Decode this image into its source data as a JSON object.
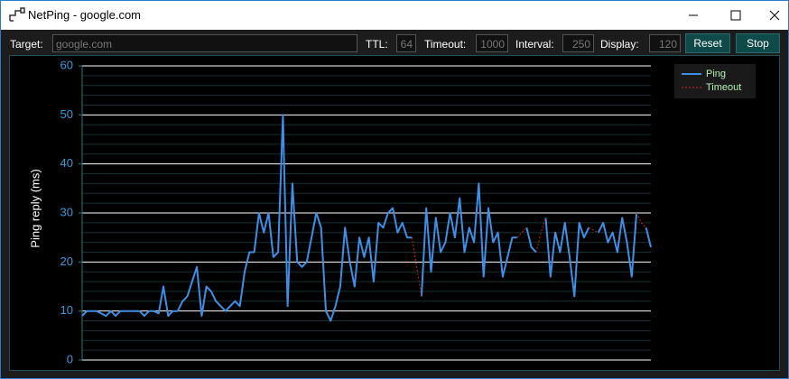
{
  "window": {
    "title": "NetPing - google.com"
  },
  "toolbar": {
    "target_label": "Target:",
    "target_value": "google.com",
    "ttl_label": "TTL:",
    "ttl_value": "64",
    "timeout_label": "Timeout:",
    "timeout_value": "1000",
    "interval_label": "Interval:",
    "interval_value": "250",
    "display_label": "Display:",
    "display_value": "120",
    "reset": "Reset",
    "stop": "Stop"
  },
  "chart_data": {
    "type": "line",
    "y_label": "Ping reply (ms)",
    "ylim": [
      0,
      60
    ],
    "yticks": [
      0,
      10,
      20,
      30,
      40,
      50,
      60
    ],
    "grid": true,
    "legend": "upper right",
    "series": [
      {
        "name": "Ping",
        "color": "#3f8fe6",
        "style": "solid",
        "values": [
          9,
          10,
          10,
          10,
          9.5,
          9,
          10,
          9,
          10,
          10,
          10,
          10,
          10,
          9,
          10,
          10,
          9.5,
          15,
          9,
          10,
          10,
          12,
          13,
          16,
          19,
          9,
          15,
          14,
          12,
          11,
          10,
          11,
          12,
          11,
          18,
          22,
          22,
          30,
          26,
          30,
          21,
          22,
          50,
          11,
          36,
          20,
          19,
          20,
          25,
          30,
          27,
          10,
          8,
          11,
          15,
          27,
          20,
          15,
          25,
          21,
          25,
          16,
          28,
          27,
          30,
          31,
          26,
          28,
          25,
          25,
          null,
          13,
          31,
          18,
          29,
          22,
          24,
          30,
          25,
          33,
          22,
          27,
          24,
          36,
          17,
          31,
          24,
          26,
          17,
          21,
          25,
          25,
          null,
          27,
          23,
          22,
          null,
          29,
          17,
          26,
          22,
          28,
          21,
          13,
          28,
          25,
          27,
          null,
          26,
          28,
          24,
          26,
          22,
          29,
          24,
          17,
          30,
          null,
          27,
          23
        ]
      },
      {
        "name": "Timeout",
        "color": "#d42020",
        "style": "dashed",
        "values": [
          null,
          null,
          null,
          null,
          null,
          null,
          null,
          null,
          null,
          null,
          null,
          null,
          null,
          null,
          null,
          null,
          null,
          null,
          null,
          null,
          null,
          null,
          null,
          null,
          null,
          null,
          null,
          null,
          null,
          null,
          null,
          null,
          null,
          null,
          null,
          null,
          null,
          null,
          null,
          null,
          null,
          null,
          null,
          null,
          null,
          null,
          null,
          null,
          null,
          null,
          null,
          null,
          null,
          null,
          null,
          null,
          null,
          null,
          null,
          null,
          null,
          null,
          null,
          null,
          null,
          null,
          null,
          null,
          null,
          25,
          19,
          13,
          null,
          null,
          null,
          null,
          null,
          null,
          null,
          null,
          null,
          null,
          null,
          null,
          null,
          null,
          null,
          null,
          null,
          null,
          null,
          25,
          26,
          27,
          null,
          22,
          26,
          29,
          null,
          null,
          null,
          null,
          null,
          null,
          null,
          null,
          27,
          26.5,
          26,
          null,
          null,
          null,
          null,
          null,
          null,
          null,
          30,
          28,
          27,
          null
        ]
      }
    ]
  }
}
